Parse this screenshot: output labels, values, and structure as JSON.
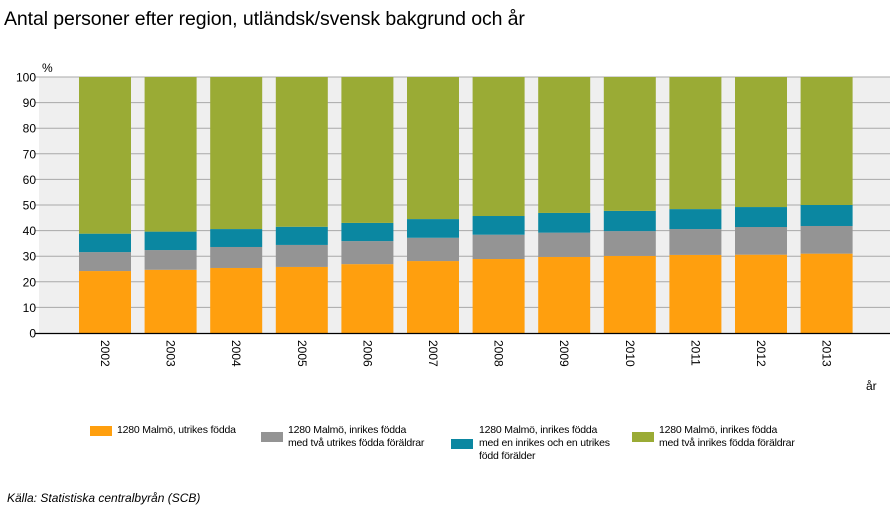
{
  "title": "Antal personer efter region, utländsk/svensk bakgrund och år",
  "source": "Källa: Statistiska centralbyrån (SCB)",
  "chart_data": {
    "type": "bar",
    "stacked": true,
    "title": "Antal personer efter region, utländsk/svensk bakgrund och år",
    "xlabel": "år",
    "ylabel": "%",
    "ylim": [
      0,
      100
    ],
    "yticks": [
      0,
      10,
      20,
      30,
      40,
      50,
      60,
      70,
      80,
      90,
      100
    ],
    "grid": true,
    "legend_position": "bottom",
    "categories": [
      "2002",
      "2003",
      "2004",
      "2005",
      "2006",
      "2007",
      "2008",
      "2009",
      "2010",
      "2011",
      "2012",
      "2013"
    ],
    "series": [
      {
        "name": "1280 Malmö, utrikes födda",
        "legend_lines": [
          "1280 Malmö, utrikes födda"
        ],
        "color": "#ff9f0e",
        "values": [
          24.2,
          24.7,
          25.4,
          25.8,
          26.9,
          28.1,
          28.9,
          29.7,
          30.1,
          30.5,
          30.6,
          31.0
        ]
      },
      {
        "name": "1280 Malmö, inrikes födda med två utrikes födda föräldrar",
        "legend_lines": [
          "1280 Malmö, inrikes födda",
          "med två utrikes födda föräldrar"
        ],
        "color": "#949494",
        "values": [
          7.4,
          7.7,
          8.2,
          8.6,
          9.0,
          9.1,
          9.5,
          9.5,
          9.7,
          10.1,
          10.8,
          10.8
        ]
      },
      {
        "name": "1280 Malmö, inrikes födda med en inrikes och en utrikes född förälder",
        "legend_lines": [
          "1280 Malmö, inrikes födda",
          "med en inrikes och en utrikes",
          "född förälder"
        ],
        "color": "#0b87a1",
        "values": [
          7.2,
          7.2,
          7.0,
          7.1,
          7.1,
          7.3,
          7.3,
          7.7,
          7.9,
          7.8,
          7.8,
          8.2
        ]
      },
      {
        "name": "1280 Malmö, inrikes födda med två inrikes födda föräldrar",
        "legend_lines": [
          "1280 Malmö, inrikes födda",
          "med två inrikes födda föräldrar"
        ],
        "color": "#9aab35",
        "values": [
          61.2,
          60.4,
          59.4,
          58.5,
          57.0,
          55.5,
          54.3,
          53.1,
          52.3,
          51.6,
          50.8,
          50.0
        ]
      }
    ]
  }
}
